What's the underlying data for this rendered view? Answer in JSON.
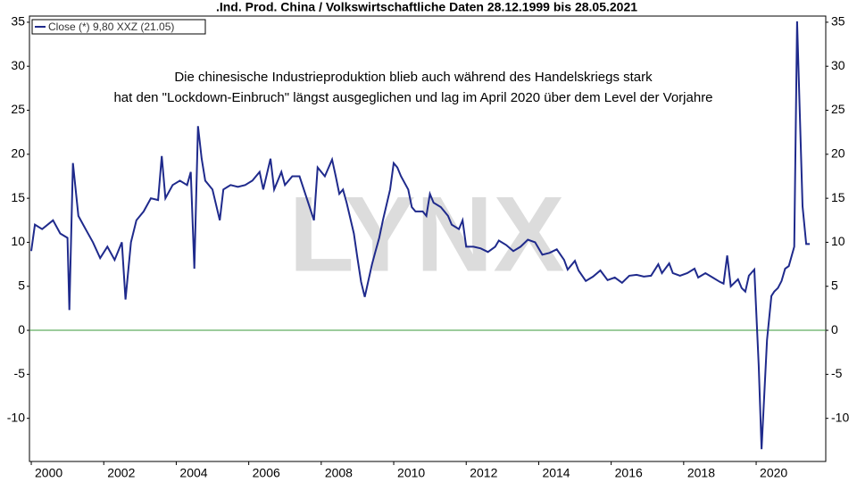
{
  "chart_data": {
    "type": "line",
    "title": ".Ind. Prod. China / Volkswirtschaftliche Daten 28.12.1999 bis 28.05.2021",
    "annotations": [
      "Die chinesische Industrieproduktion blieb auch während des Handelskriegs stark",
      "hat den \"Lockdown-Einbruch\" längst ausgeglichen und lag im April 2020 über dem Level der Vorjahre"
    ],
    "watermark": "LYNX",
    "legend": "top-left",
    "hline": {
      "value": 0,
      "color": "#3a9a3a"
    },
    "x": [
      2000.0,
      2000.1,
      2000.3,
      2000.6,
      2000.8,
      2001.0,
      2001.05,
      2001.15,
      2001.3,
      2001.5,
      2001.7,
      2001.9,
      2002.1,
      2002.3,
      2002.5,
      2002.6,
      2002.75,
      2002.9,
      2003.1,
      2003.3,
      2003.5,
      2003.6,
      2003.7,
      2003.9,
      2004.1,
      2004.3,
      2004.4,
      2004.5,
      2004.6,
      2004.7,
      2004.8,
      2005.0,
      2005.2,
      2005.3,
      2005.5,
      2005.7,
      2005.9,
      2006.1,
      2006.3,
      2006.4,
      2006.6,
      2006.7,
      2006.9,
      2007.0,
      2007.2,
      2007.4,
      2007.6,
      2007.8,
      2007.9,
      2008.1,
      2008.3,
      2008.4,
      2008.5,
      2008.6,
      2008.7,
      2008.9,
      2009.0,
      2009.1,
      2009.2,
      2009.4,
      2009.5,
      2009.6,
      2009.7,
      2009.9,
      2010.0,
      2010.1,
      2010.2,
      2010.4,
      2010.5,
      2010.6,
      2010.8,
      2010.9,
      2011.0,
      2011.1,
      2011.3,
      2011.5,
      2011.6,
      2011.8,
      2011.9,
      2012.0,
      2012.2,
      2012.4,
      2012.6,
      2012.8,
      2012.9,
      2013.1,
      2013.3,
      2013.5,
      2013.7,
      2013.9,
      2014.1,
      2014.3,
      2014.5,
      2014.7,
      2014.8,
      2015.0,
      2015.1,
      2015.3,
      2015.5,
      2015.7,
      2015.9,
      2016.1,
      2016.3,
      2016.5,
      2016.7,
      2016.9,
      2017.1,
      2017.3,
      2017.4,
      2017.6,
      2017.7,
      2017.9,
      2018.1,
      2018.3,
      2018.4,
      2018.6,
      2018.8,
      2019.0,
      2019.1,
      2019.2,
      2019.3,
      2019.5,
      2019.6,
      2019.7,
      2019.8,
      2019.95,
      2020.07,
      2020.15,
      2020.3,
      2020.42,
      2020.5,
      2020.6,
      2020.7,
      2020.8,
      2020.9,
      2021.05,
      2021.13,
      2021.28,
      2021.38,
      2021.48
    ],
    "series": [
      {
        "name": "Close (*) 9,80 XXZ (21.05)",
        "color": "#1f2a8c",
        "values": [
          9,
          12,
          11.5,
          12.5,
          11,
          10.5,
          2.3,
          19,
          13,
          11.5,
          10,
          8.2,
          9.5,
          8,
          10,
          3.5,
          10,
          12.5,
          13.5,
          15,
          14.8,
          19.8,
          15,
          16.5,
          17,
          16.5,
          18,
          7,
          23.2,
          19.5,
          17,
          16,
          12.5,
          16,
          16.5,
          16.3,
          16.5,
          17,
          18,
          16,
          19.5,
          16,
          18,
          16.5,
          17.5,
          17.5,
          15,
          12.5,
          18.5,
          17.5,
          19.4,
          17.5,
          15.5,
          16,
          14.5,
          11,
          8.2,
          5.5,
          3.8,
          7.5,
          9,
          10.5,
          12.5,
          16,
          19,
          18.5,
          17.5,
          16,
          14,
          13.5,
          13.5,
          13,
          15.5,
          14.5,
          14,
          13,
          12,
          11.5,
          12.5,
          9.5,
          9.5,
          9.3,
          8.9,
          9.5,
          10.2,
          9.7,
          9,
          9.5,
          10.3,
          10,
          8.6,
          8.8,
          9.2,
          8,
          6.9,
          7.9,
          6.8,
          5.6,
          6.1,
          6.8,
          5.7,
          6,
          5.4,
          6.2,
          6.3,
          6.1,
          6.2,
          7.5,
          6.5,
          7.6,
          6.5,
          6.2,
          6.5,
          7,
          6,
          6.5,
          6,
          5.5,
          5.3,
          8.5,
          5,
          5.8,
          4.8,
          4.4,
          6.2,
          6.9,
          -4,
          -13.5,
          -1.1,
          3.9,
          4.4,
          4.8,
          5.6,
          7,
          7.3,
          9.5,
          35.1,
          14.1,
          9.8,
          9.8
        ]
      }
    ],
    "xlim": [
      1999.95,
      2021.92
    ],
    "xticks": [
      2000,
      2002,
      2004,
      2006,
      2008,
      2010,
      2012,
      2014,
      2016,
      2018,
      2020
    ],
    "ylim": [
      -14.9,
      35.7
    ],
    "yticks": [
      -10,
      -5,
      0,
      5,
      10,
      15,
      20,
      25,
      30,
      35
    ]
  }
}
